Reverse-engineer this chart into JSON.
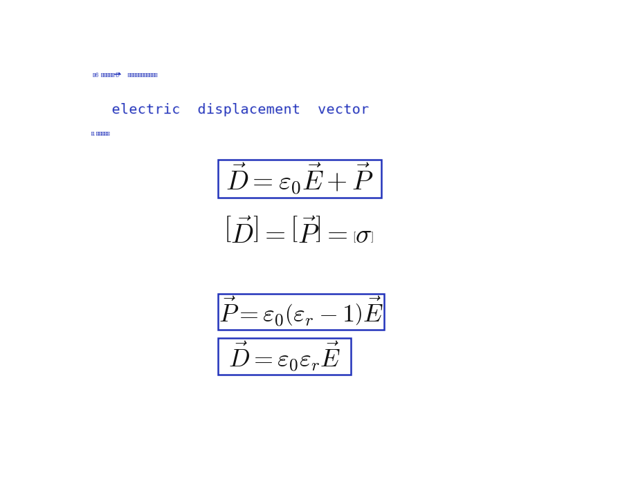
{
  "bg_color": "#ffffff",
  "blue_color": "#2233bb",
  "black_color": "#111111",
  "figsize": [
    9.2,
    6.9
  ],
  "dpi": 100
}
